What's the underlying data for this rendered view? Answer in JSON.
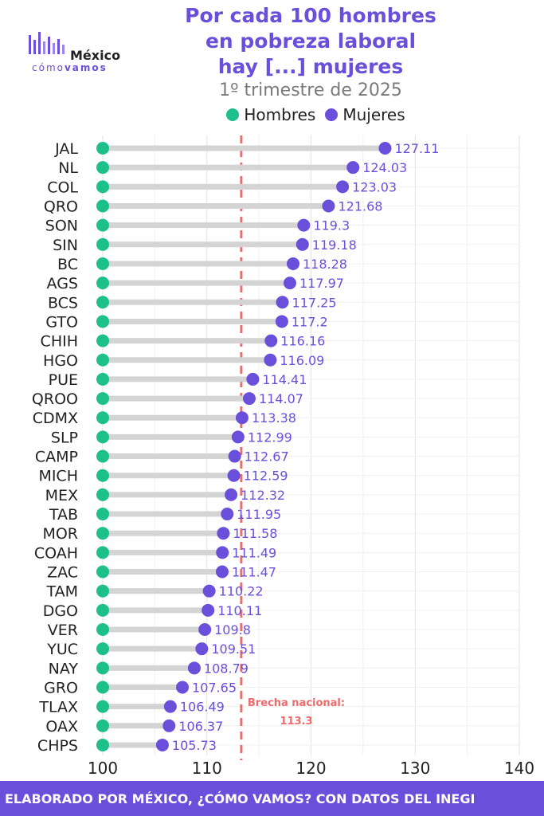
{
  "title_lines": [
    "Por cada 100 hombres",
    "en pobreza laboral",
    "hay [...] mujeres"
  ],
  "subtitle": "1º trimestre de 2025",
  "logo": {
    "brand": "México",
    "tagline_a": "cómo",
    "tagline_b": "vamos"
  },
  "footer": "ELABORADO POR MÉXICO, ¿CÓMO VAMOS? CON DATOS DEL INEGI",
  "colors": {
    "hombres": "#1dbf8a",
    "mujeres": "#6a4fdb",
    "segment": "#d4d4d4",
    "reference": "#ef6b6b",
    "accent": "#6a4fdb"
  },
  "chart_data": {
    "type": "dumbbell",
    "categories": [
      "JAL",
      "NL",
      "COL",
      "QRO",
      "SON",
      "SIN",
      "BC",
      "AGS",
      "BCS",
      "GTO",
      "CHIH",
      "HGO",
      "PUE",
      "QROO",
      "CDMX",
      "SLP",
      "CAMP",
      "MICH",
      "MEX",
      "TAB",
      "MOR",
      "COAH",
      "ZAC",
      "TAM",
      "DGO",
      "VER",
      "YUC",
      "NAY",
      "GRO",
      "TLAX",
      "OAX",
      "CHPS"
    ],
    "series": [
      {
        "name": "Hombres",
        "values": [
          100,
          100,
          100,
          100,
          100,
          100,
          100,
          100,
          100,
          100,
          100,
          100,
          100,
          100,
          100,
          100,
          100,
          100,
          100,
          100,
          100,
          100,
          100,
          100,
          100,
          100,
          100,
          100,
          100,
          100,
          100,
          100
        ]
      },
      {
        "name": "Mujeres",
        "values": [
          127.11,
          124.03,
          123.03,
          121.68,
          119.3,
          119.18,
          118.28,
          117.97,
          117.25,
          117.2,
          116.16,
          116.09,
          114.41,
          114.07,
          113.38,
          112.99,
          112.67,
          112.59,
          112.32,
          111.95,
          111.58,
          111.49,
          111.47,
          110.22,
          110.11,
          109.8,
          109.51,
          108.79,
          107.65,
          106.49,
          106.37,
          105.73
        ]
      }
    ],
    "data_labels": [
      "127.11",
      "124.03",
      "123.03",
      "121.68",
      "119.3",
      "119.18",
      "118.28",
      "117.97",
      "117.25",
      "117.2",
      "116.16",
      "116.09",
      "114.41",
      "114.07",
      "113.38",
      "112.99",
      "112.67",
      "112.59",
      "112.32",
      "111.95",
      "111.58",
      "111.49",
      "111.47",
      "110.22",
      "110.11",
      "109.8",
      "109.51",
      "108.79",
      "107.65",
      "106.49",
      "106.37",
      "105.73"
    ],
    "xlim": [
      100,
      140
    ],
    "xticks": [
      100,
      110,
      120,
      130,
      140
    ],
    "reference": {
      "value": 113.3,
      "label_line1": "Brecha nacional:",
      "label_line2": "113.3"
    },
    "grid": true,
    "legend_position": "top"
  }
}
